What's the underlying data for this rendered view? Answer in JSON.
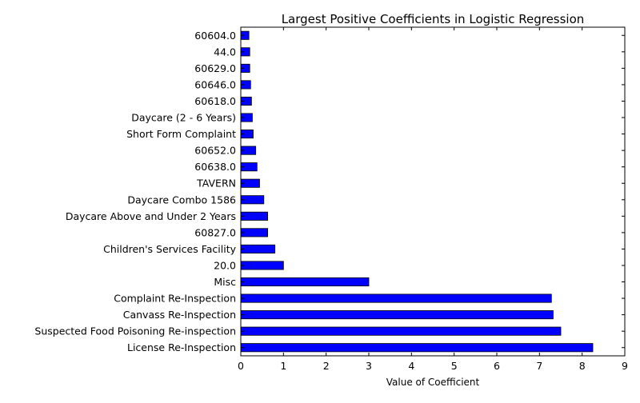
{
  "chart_data": {
    "type": "bar",
    "orientation": "horizontal",
    "title": "Largest Positive Coefficients in Logistic Regression",
    "xlabel": "Value of Coefficient",
    "ylabel": "",
    "xlim": [
      0,
      9
    ],
    "xticks": [
      0,
      1,
      2,
      3,
      4,
      5,
      6,
      7,
      8,
      9
    ],
    "grid": false,
    "legend": "none",
    "categories": [
      "License Re-Inspection",
      "Suspected Food Poisoning Re-inspection",
      "Canvass Re-Inspection",
      "Complaint Re-Inspection",
      "Misc",
      "20.0",
      "Children's Services Facility",
      "60827.0",
      "Daycare Above and Under 2 Years",
      "Daycare Combo 1586",
      "TAVERN",
      "60638.0",
      "60652.0",
      "Short Form Complaint",
      "Daycare (2 - 6 Years)",
      "60618.0",
      "60646.0",
      "60629.0",
      "44.0",
      "60604.0"
    ],
    "values": [
      8.25,
      7.5,
      7.32,
      7.28,
      3.0,
      1.0,
      0.8,
      0.63,
      0.63,
      0.54,
      0.44,
      0.38,
      0.35,
      0.29,
      0.27,
      0.25,
      0.23,
      0.21,
      0.21,
      0.19
    ],
    "bar_color": "#0000ff",
    "edge_color": "#000000"
  }
}
